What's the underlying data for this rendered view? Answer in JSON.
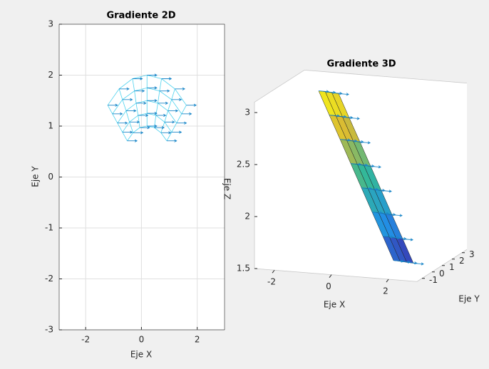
{
  "chart_data": [
    {
      "type": "quiver",
      "title": "Gradiente 2D",
      "xlabel": "Eje X",
      "ylabel": "Eje Y",
      "xlim": [
        -2.95,
        2.98
      ],
      "ylim": [
        -3,
        3
      ],
      "xticks": [
        -2,
        0,
        2
      ],
      "yticks": [
        -3,
        -2,
        -1,
        0,
        1,
        2,
        3
      ],
      "grid": true,
      "mesh_color": "#4dd2ee",
      "color": "#1a86c8",
      "x": [
        [
          0.91,
          0.7,
          0.46,
          0.2,
          -0.06,
          -0.3,
          -0.51
        ],
        [
          1.08,
          0.83,
          0.52,
          0.2,
          -0.12,
          -0.43,
          -0.68
        ],
        [
          1.26,
          0.95,
          0.59,
          0.2,
          -0.19,
          -0.55,
          -0.86
        ],
        [
          1.44,
          1.08,
          0.65,
          0.2,
          -0.25,
          -0.68,
          -1.04
        ],
        [
          1.61,
          1.2,
          0.72,
          0.2,
          -0.32,
          -0.8,
          -1.21
        ]
      ],
      "y": [
        [
          0.71,
          0.87,
          0.97,
          1,
          0.97,
          0.87,
          0.71
        ],
        [
          0.88,
          1.08,
          1.21,
          1.25,
          1.21,
          1.08,
          0.88
        ],
        [
          1.06,
          1.3,
          1.45,
          1.5,
          1.45,
          1.3,
          1.06
        ],
        [
          1.24,
          1.52,
          1.69,
          1.75,
          1.69,
          1.52,
          1.24
        ],
        [
          1.41,
          1.73,
          1.93,
          2,
          1.93,
          1.73,
          1.41
        ]
      ],
      "u": [
        [
          0.35,
          0.35,
          0.35,
          0.35,
          0.35,
          0.35,
          0.35
        ],
        [
          0.35,
          0.35,
          0.35,
          0.35,
          0.35,
          0.35,
          0.35
        ],
        [
          0.35,
          0.35,
          0.35,
          0.35,
          0.35,
          0.35,
          0.35
        ],
        [
          0.35,
          0.35,
          0.35,
          0.35,
          0.35,
          0.35,
          0.35
        ],
        [
          0.35,
          0.35,
          0.35,
          0.35,
          0.35,
          0.35,
          0.35
        ]
      ],
      "v": [
        [
          0,
          0,
          0,
          0,
          0,
          0,
          0
        ],
        [
          0,
          0,
          0,
          0,
          0,
          0,
          0
        ],
        [
          0,
          0,
          0,
          0,
          0,
          0,
          0
        ],
        [
          0,
          0,
          0,
          0,
          0,
          0,
          0
        ],
        [
          0,
          0,
          0,
          0,
          0,
          0,
          0
        ]
      ]
    },
    {
      "type": "surface3d",
      "title": "Gradiente 3D",
      "xlabel": "Eje X",
      "ylabel": "Eje Y",
      "zlabel": "Eje Z",
      "xlim": [
        -2.7,
        3.0
      ],
      "ylim": [
        -1.5,
        3.5
      ],
      "zlim": [
        1.5,
        3.1
      ],
      "xticks": [
        -2,
        0,
        2
      ],
      "yticks": [
        -1,
        0,
        1,
        2,
        3
      ],
      "zticks": [
        1.5,
        2,
        2.5,
        3
      ],
      "arrow_color": "#1a86c8",
      "arrow_u": 0.35,
      "x": [
        [
          -1.5,
          -1,
          -0.5,
          0,
          0.5,
          1,
          1.5,
          2
        ],
        [
          -1.5,
          -1,
          -0.5,
          0,
          0.5,
          1,
          1.5,
          2
        ],
        [
          -1.5,
          -1,
          -0.5,
          0,
          0.5,
          1,
          1.5,
          2
        ],
        [
          -1.5,
          -1,
          -0.5,
          0,
          0.5,
          1,
          1.5,
          2
        ]
      ],
      "y": [
        [
          1.5,
          1.14,
          0.79,
          0.43,
          0.07,
          -0.29,
          -0.64,
          -1
        ],
        [
          2.17,
          1.81,
          1.46,
          1.1,
          0.74,
          0.38,
          0.03,
          -0.33
        ],
        [
          2.83,
          2.47,
          2.12,
          1.76,
          1.4,
          1.04,
          0.69,
          0.33
        ],
        [
          3.5,
          3.14,
          2.79,
          2.43,
          2.07,
          1.71,
          1.36,
          1
        ]
      ],
      "z": [
        [
          3.05,
          2.85,
          2.65,
          2.45,
          2.25,
          2.05,
          1.85,
          1.65
        ],
        [
          3,
          2.8,
          2.6,
          2.4,
          2.2,
          2,
          1.8,
          1.6
        ],
        [
          2.95,
          2.75,
          2.55,
          2.35,
          2.15,
          1.95,
          1.75,
          1.55
        ],
        [
          2.9,
          2.7,
          2.5,
          2.3,
          2.1,
          1.9,
          1.7,
          1.5
        ]
      ]
    }
  ]
}
